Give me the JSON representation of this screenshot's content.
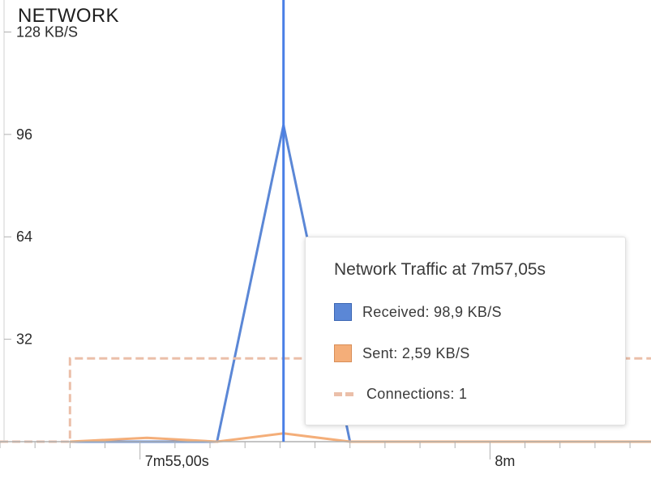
{
  "panel": {
    "title": "NETWORK"
  },
  "colors": {
    "received": "#5b87d6",
    "received_border": "#3c66b3",
    "sent": "#f4ae79",
    "sent_border": "#d88e58",
    "connections": "#ebbfa9",
    "cursor": "#4a7fe6",
    "axis": "#b0b0b0"
  },
  "chart_data": {
    "type": "line",
    "title": "NETWORK",
    "y_tick_labels": [
      "128 KB/S",
      "96",
      "64",
      "32"
    ],
    "y_ticks": [
      128,
      96,
      64,
      32
    ],
    "ylim": [
      0,
      138
    ],
    "x_tick_labels": [
      "7m55,00s",
      "8m"
    ],
    "x_tick_values": [
      55.0,
      60.0
    ],
    "xlim": [
      53.0,
      62.3
    ],
    "grid": false,
    "series": [
      {
        "name": "Received",
        "color": "#5b87d6",
        "x": [
          54.0,
          54.8,
          56.1,
          57.05,
          58.0,
          62.3
        ],
        "y": [
          0,
          0,
          0,
          98.9,
          0,
          0
        ]
      },
      {
        "name": "Sent",
        "color": "#f4ae79",
        "x": [
          54.0,
          55.1,
          56.1,
          57.05,
          58.0,
          62.3
        ],
        "y": [
          0,
          1.2,
          0,
          2.59,
          0,
          0
        ]
      },
      {
        "name": "Connections",
        "color": "#ebbfa9",
        "dashed": true,
        "x": [
          53.0,
          54.0,
          54.0,
          62.3
        ],
        "y": [
          0,
          0,
          26,
          26
        ]
      }
    ],
    "cursor_x": 57.05
  },
  "tooltip": {
    "title": "Network Traffic at 7m57,05s",
    "received_label": "Received: 98,9 KB/S",
    "sent_label": "Sent: 2,59 KB/S",
    "connections_label": "Connections: 1"
  }
}
